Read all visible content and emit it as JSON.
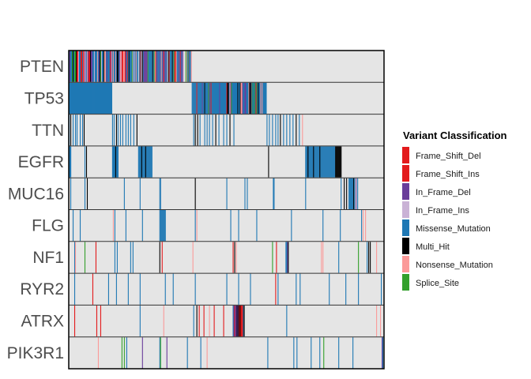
{
  "chart_data": {
    "type": "heatmap",
    "genes": [
      "PTEN",
      "TP53",
      "TTN",
      "EGFR",
      "MUC16",
      "FLG",
      "NF1",
      "RYR2",
      "ATRX",
      "PIK3R1"
    ],
    "legend": {
      "title": "Variant Classification",
      "position": "right",
      "items": [
        {
          "label": "Frame_Shift_Del",
          "color": "#e31a1c"
        },
        {
          "label": "Frame_Shift_Ins",
          "color": "#e31a1c"
        },
        {
          "label": "In_Frame_Del",
          "color": "#6a3d9a"
        },
        {
          "label": "In_Frame_Ins",
          "color": "#cab2d6"
        },
        {
          "label": "Missense_Mutation",
          "color": "#1f78b4"
        },
        {
          "label": "Multi_Hit",
          "color": "#000000"
        },
        {
          "label": "Nonsense_Mutation",
          "color": "#fb9a99"
        },
        {
          "label": "Splice_Site",
          "color": "#33a02c"
        }
      ]
    },
    "background_color": "#e5e5e5",
    "n_samples": 400,
    "rows": [
      {
        "gene": "PTEN",
        "segments": [
          [
            0,
            156,
            "mix"
          ]
        ],
        "cells": []
      },
      {
        "gene": "TP53",
        "segments": [
          [
            0,
            55,
            "mis"
          ],
          [
            156,
            95,
            "mix2"
          ]
        ],
        "cells": []
      },
      {
        "gene": "TTN",
        "segments": [],
        "cells": [
          [
            0,
            "mis"
          ],
          [
            2,
            "mul"
          ],
          [
            5,
            "mis"
          ],
          [
            8,
            "mis"
          ],
          [
            10,
            "mis"
          ],
          [
            14,
            "mis"
          ],
          [
            17,
            "mis"
          ],
          [
            19,
            "mul"
          ],
          [
            55,
            "mis"
          ],
          [
            57,
            "mis"
          ],
          [
            60,
            "mul"
          ],
          [
            62,
            "mis"
          ],
          [
            65,
            "mis"
          ],
          [
            68,
            "mis"
          ],
          [
            72,
            "mis"
          ],
          [
            75,
            "mis"
          ],
          [
            78,
            "mis"
          ],
          [
            82,
            "mis"
          ],
          [
            86,
            "mul"
          ],
          [
            158,
            "mis"
          ],
          [
            160,
            "mul"
          ],
          [
            163,
            "mul"
          ],
          [
            166,
            "mis"
          ],
          [
            172,
            "mis"
          ],
          [
            175,
            "mis"
          ],
          [
            178,
            "mis"
          ],
          [
            182,
            "mis"
          ],
          [
            186,
            "mul"
          ],
          [
            190,
            "mis"
          ],
          [
            196,
            "mis"
          ],
          [
            200,
            "mis"
          ],
          [
            204,
            "mul"
          ],
          [
            209,
            "mis"
          ],
          [
            251,
            "mis"
          ],
          [
            254,
            "mis"
          ],
          [
            258,
            "mis"
          ],
          [
            262,
            "mis"
          ],
          [
            265,
            "mis"
          ],
          [
            268,
            "mul"
          ],
          [
            272,
            "mis"
          ],
          [
            276,
            "mis"
          ],
          [
            280,
            "mis"
          ],
          [
            284,
            "mis"
          ],
          [
            288,
            "mul"
          ],
          [
            292,
            "mis"
          ],
          [
            296,
            "non"
          ]
        ]
      },
      {
        "gene": "EGFR",
        "segments": [
          [
            0,
            3,
            "mis"
          ],
          [
            55,
            8,
            "mis"
          ],
          [
            88,
            18,
            "mis"
          ],
          [
            300,
            38,
            "mis"
          ],
          [
            338,
            8,
            "mul"
          ]
        ],
        "cells": [
          [
            20,
            "mis"
          ],
          [
            22,
            "mul"
          ],
          [
            59,
            "mul"
          ],
          [
            92,
            "mul"
          ],
          [
            97,
            "mul"
          ],
          [
            253,
            "mul"
          ],
          [
            303,
            "mul"
          ],
          [
            310,
            "mul"
          ],
          [
            318,
            "mul"
          ]
        ]
      },
      {
        "gene": "MUC16",
        "segments": [
          [
            355,
            8,
            "mis"
          ]
        ],
        "cells": [
          [
            2,
            "mis"
          ],
          [
            20,
            "mis"
          ],
          [
            23,
            "mul"
          ],
          [
            70,
            "mis"
          ],
          [
            90,
            "mis"
          ],
          [
            115,
            "mis"
          ],
          [
            116,
            "mis"
          ],
          [
            160,
            "mul"
          ],
          [
            200,
            "mis"
          ],
          [
            223,
            "mis"
          ],
          [
            226,
            "mis"
          ],
          [
            259,
            "mis"
          ],
          [
            260,
            "mis"
          ],
          [
            300,
            "mis"
          ],
          [
            345,
            "mis"
          ],
          [
            349,
            "mul"
          ],
          [
            352,
            "mul"
          ],
          [
            361,
            "mul"
          ],
          [
            364,
            "ifd"
          ],
          [
            366,
            "mis"
          ]
        ]
      },
      {
        "gene": "FLG",
        "segments": [
          [
            115,
            8,
            "mis"
          ]
        ],
        "cells": [
          [
            5,
            "mis"
          ],
          [
            14,
            "mis"
          ],
          [
            56,
            "non"
          ],
          [
            58,
            "mis"
          ],
          [
            72,
            "mis"
          ],
          [
            93,
            "mis"
          ],
          [
            160,
            "mis"
          ],
          [
            162,
            "non"
          ],
          [
            205,
            "mis"
          ],
          [
            215,
            "mis"
          ],
          [
            238,
            "mis"
          ],
          [
            282,
            "mis"
          ],
          [
            322,
            "mis"
          ],
          [
            344,
            "mis"
          ],
          [
            371,
            "mis"
          ],
          [
            373,
            "non"
          ],
          [
            376,
            "non"
          ]
        ]
      },
      {
        "gene": "NF1",
        "segments": [],
        "cells": [
          [
            7,
            "mis"
          ],
          [
            8,
            "non"
          ],
          [
            20,
            "spl"
          ],
          [
            34,
            "fsd"
          ],
          [
            58,
            "mis"
          ],
          [
            61,
            "mis"
          ],
          [
            78,
            "mis"
          ],
          [
            81,
            "mis"
          ],
          [
            115,
            "mul"
          ],
          [
            118,
            "fsd"
          ],
          [
            157,
            "non"
          ],
          [
            208,
            "fsd"
          ],
          [
            210,
            "mul"
          ],
          [
            212,
            "non"
          ],
          [
            258,
            "spl"
          ],
          [
            263,
            "fsd"
          ],
          [
            275,
            "mis"
          ],
          [
            276,
            "mis"
          ],
          [
            277,
            "ifd"
          ],
          [
            278,
            "mul"
          ],
          [
            320,
            "non"
          ],
          [
            322,
            "non"
          ],
          [
            342,
            "mis"
          ],
          [
            367,
            "spl"
          ],
          [
            378,
            "mis"
          ],
          [
            380,
            "mul"
          ],
          [
            382,
            "mul"
          ],
          [
            390,
            "non"
          ]
        ]
      },
      {
        "gene": "RYR2",
        "segments": [],
        "cells": [
          [
            7,
            "mis"
          ],
          [
            30,
            "fsd"
          ],
          [
            50,
            "mis"
          ],
          [
            60,
            "mis"
          ],
          [
            75,
            "mis"
          ],
          [
            90,
            "mis"
          ],
          [
            122,
            "mis"
          ],
          [
            132,
            "mis"
          ],
          [
            160,
            "mis"
          ],
          [
            200,
            "mis"
          ],
          [
            215,
            "mis"
          ],
          [
            230,
            "mis"
          ],
          [
            262,
            "fsd"
          ],
          [
            265,
            "mis"
          ],
          [
            288,
            "mis"
          ],
          [
            293,
            "mis"
          ],
          [
            330,
            "mis"
          ],
          [
            351,
            "mis"
          ],
          [
            367,
            "mis"
          ],
          [
            396,
            "mis"
          ]
        ]
      },
      {
        "gene": "ATRX",
        "segments": [
          [
            208,
            15,
            "atrx"
          ]
        ],
        "cells": [
          [
            7,
            "fsd"
          ],
          [
            35,
            "fsd"
          ],
          [
            40,
            "fsd"
          ],
          [
            90,
            "mis"
          ],
          [
            120,
            "non"
          ],
          [
            158,
            "mis"
          ],
          [
            162,
            "mul"
          ],
          [
            165,
            "fsd"
          ],
          [
            171,
            "fsd"
          ],
          [
            178,
            "non"
          ],
          [
            184,
            "fsd"
          ],
          [
            196,
            "fsd"
          ],
          [
            276,
            "mis"
          ],
          [
            390,
            "non"
          ],
          [
            395,
            "non"
          ]
        ]
      },
      {
        "gene": "PIK3R1",
        "segments": [],
        "cells": [
          [
            37,
            "non"
          ],
          [
            67,
            "spl"
          ],
          [
            70,
            "spl"
          ],
          [
            73,
            "mis"
          ],
          [
            93,
            "ifd"
          ],
          [
            115,
            "mis"
          ],
          [
            116,
            "spl"
          ],
          [
            124,
            "ifd"
          ],
          [
            150,
            "mis"
          ],
          [
            167,
            "mis"
          ],
          [
            175,
            "non"
          ],
          [
            252,
            "mis"
          ],
          [
            285,
            "mis"
          ],
          [
            289,
            "mis"
          ],
          [
            307,
            "mis"
          ],
          [
            318,
            "mis"
          ],
          [
            323,
            "spl"
          ],
          [
            342,
            "mis"
          ],
          [
            360,
            "mis"
          ],
          [
            397,
            "ifd"
          ],
          [
            398,
            "mis"
          ]
        ]
      }
    ]
  }
}
